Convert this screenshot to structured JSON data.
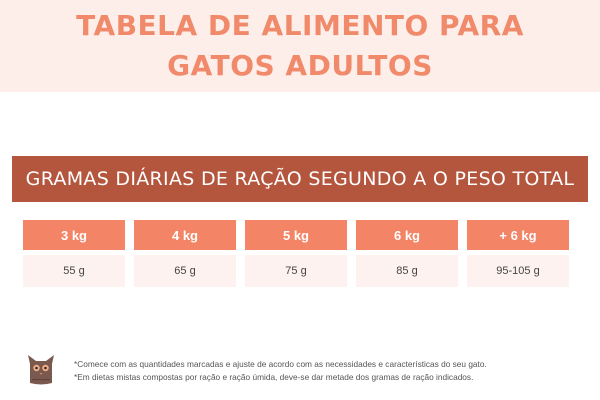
{
  "title": {
    "line1": "TABELA DE ALIMENTO PARA",
    "line2": "GATOS ADULTOS"
  },
  "subtitle": "GRAMAS DIÁRIAS DE RAÇÃO SEGUNDO A O PESO TOTAL",
  "table": {
    "headers": [
      "3 kg",
      "4 kg",
      "5 kg",
      "6 kg",
      "+ 6 kg"
    ],
    "values": [
      "55 g",
      "65 g",
      "75 g",
      "85 g",
      "95-105 g"
    ]
  },
  "notes": [
    "*Comece com as quantidades marcadas e ajuste de acordo com as necessidades e características do seu gato.",
    "*Em dietas mistas compostas por ração e ração úmida, deve-se dar metade dos gramas de ração indicados."
  ],
  "colors": {
    "title": "#f08a6a",
    "title_band": "#fdeeea",
    "subtitle_bar": "#b4553d",
    "header_cell": "#f38466",
    "value_cell": "#fdf2ef",
    "cat_icon": "#7a5a4f"
  },
  "icons": {
    "footer": "cat-icon"
  }
}
